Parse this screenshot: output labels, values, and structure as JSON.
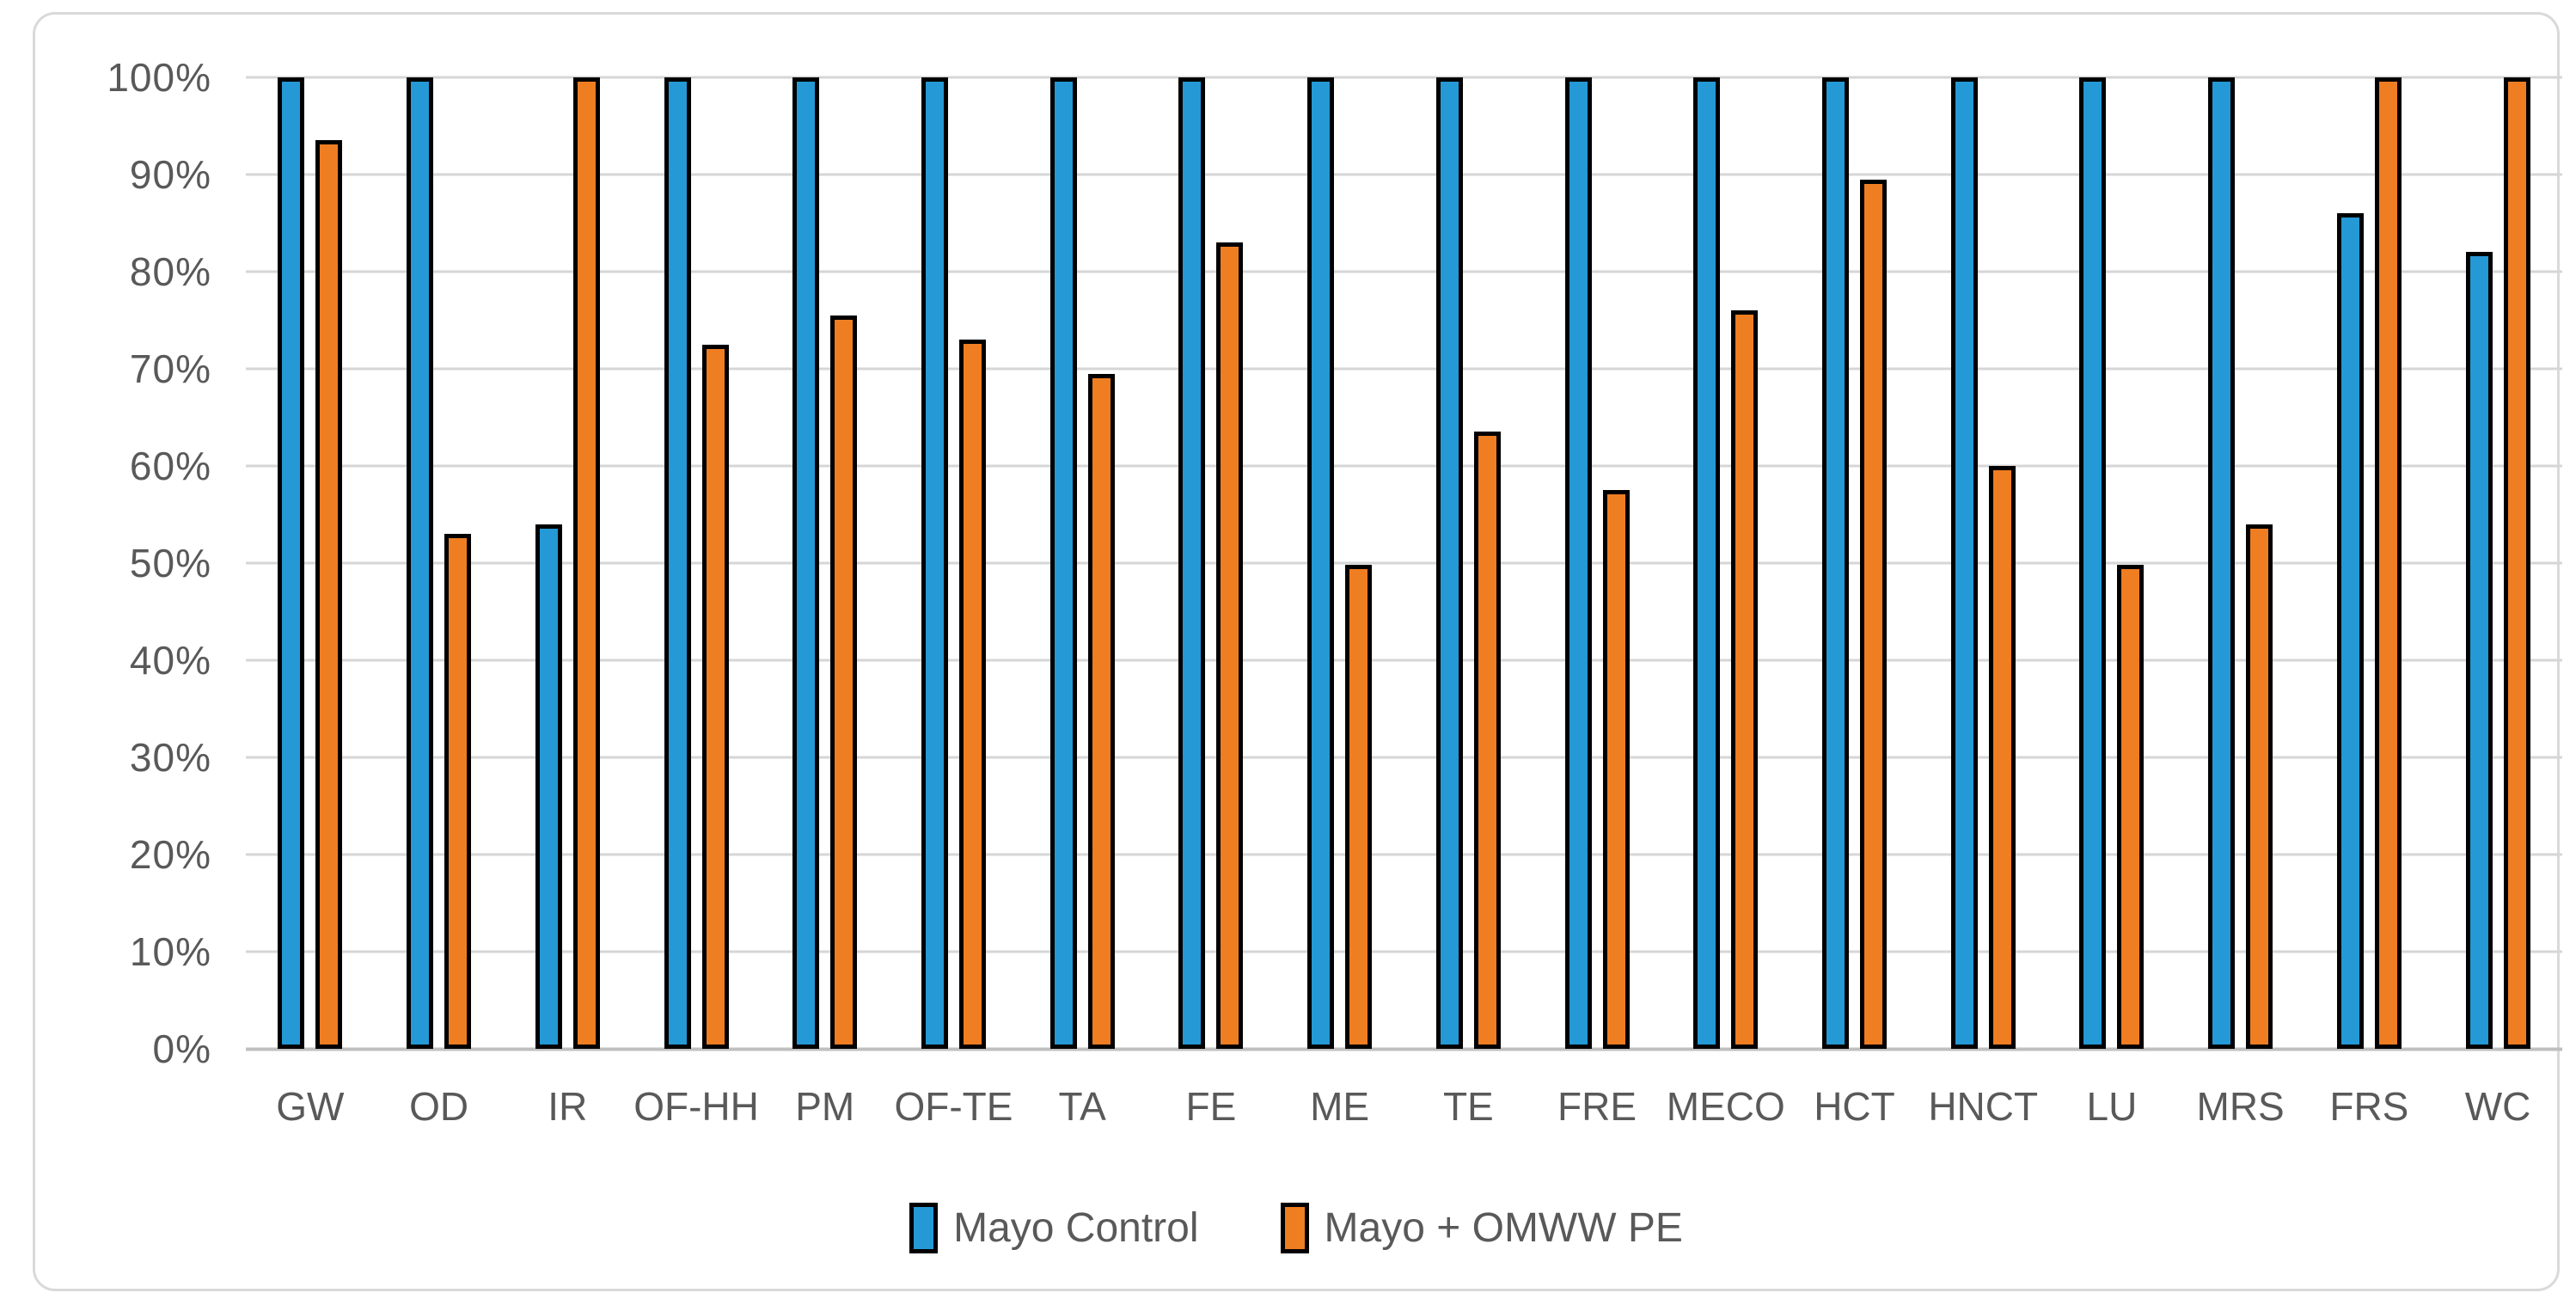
{
  "chart_data": {
    "type": "bar",
    "title": "",
    "xlabel": "",
    "ylabel": "",
    "categories": [
      "GW",
      "OD",
      "IR",
      "OF-HH",
      "PM",
      "OF-TE",
      "TA",
      "FE",
      "ME",
      "TE",
      "FRE",
      "MECO",
      "HCT",
      "HNCT",
      "LU",
      "MRS",
      "FRS",
      "WC"
    ],
    "series": [
      {
        "name": "Mayo Control",
        "color": "#2499D6",
        "values": [
          100,
          100,
          54,
          100,
          100,
          100,
          100,
          100,
          100,
          100,
          100,
          100,
          100,
          100,
          100,
          100,
          86,
          82
        ]
      },
      {
        "name": "Mayo + OMWW PE",
        "color": "#EF7D22",
        "values": [
          93.5,
          53,
          100,
          72.5,
          75.5,
          73,
          69.5,
          83,
          49.8,
          63.5,
          57.5,
          76,
          89.5,
          60,
          49.8,
          54,
          100,
          100
        ]
      }
    ],
    "ylim": [
      0,
      100
    ],
    "y_ticks": [
      "100%",
      "90%",
      "80%",
      "70%",
      "60%",
      "50%",
      "40%",
      "30%",
      "20%",
      "10%",
      "0%"
    ],
    "grid": "horizontal",
    "legend_position": "bottom",
    "bar_outline_color": "#000000",
    "gridline_color": "#D6D6D6",
    "axis_text_color": "#595959"
  }
}
